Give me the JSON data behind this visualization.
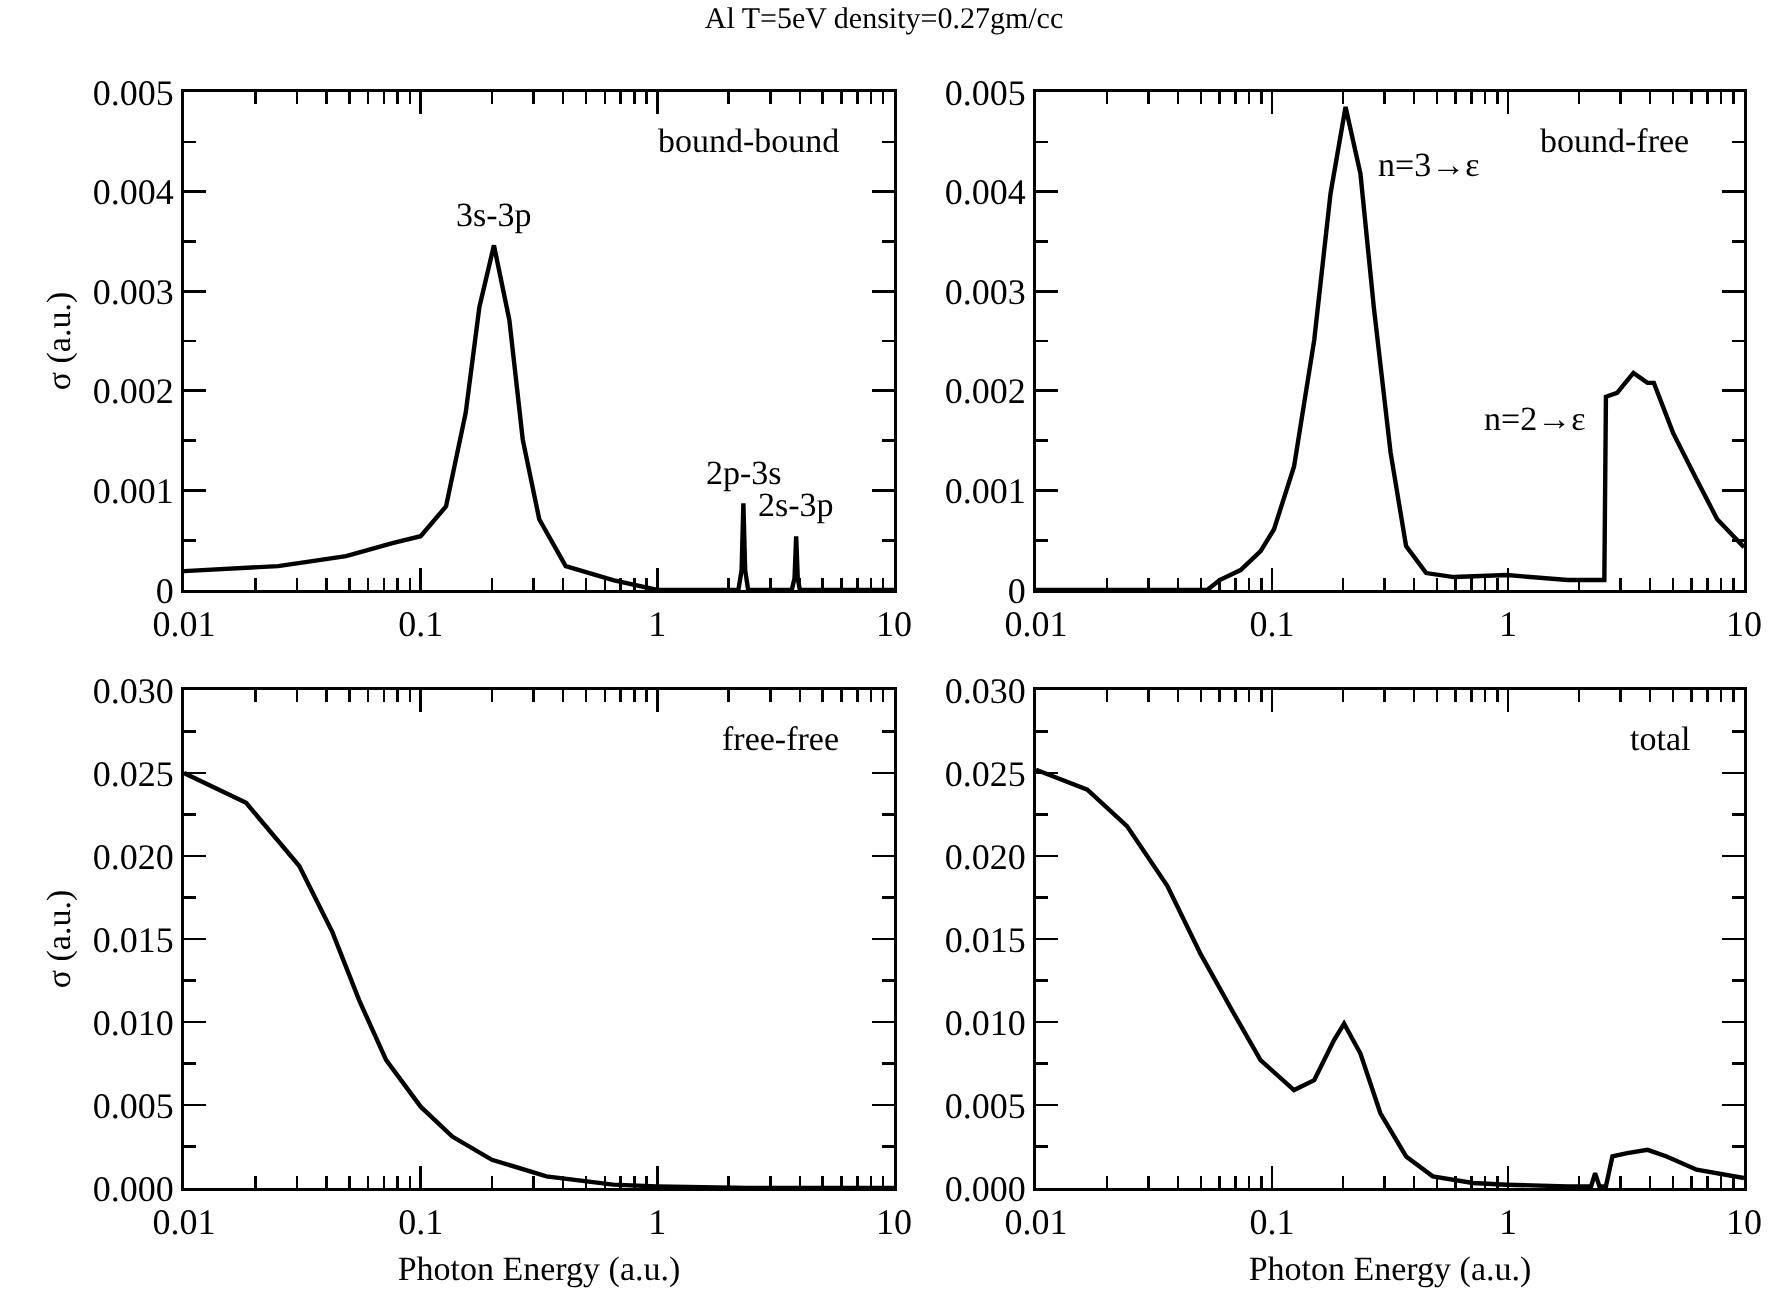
{
  "chart_data": [
    {
      "type": "line",
      "title": "Al  T=5eV density=0.27gm/cc",
      "ylabel": "σ (a.u.)",
      "log": "x",
      "color": "#000000",
      "x": [
        0.01,
        0.025,
        0.0484,
        0.076,
        0.1,
        0.128,
        0.155,
        0.177,
        0.204,
        0.237,
        0.27,
        0.317,
        0.41,
        0.65,
        1,
        2.1,
        2.2,
        2.27,
        2.31,
        2.35,
        2.42,
        3.7,
        3.8,
        3.86,
        3.92,
        4.0,
        10
      ],
      "values": [
        0.00019,
        0.00024,
        0.00034,
        0.00047,
        0.00054,
        0.00084,
        0.00178,
        0.00284,
        0.00346,
        0.00271,
        0.00151,
        0.00071,
        0.00024,
        0.0001,
        0,
        0,
        0,
        0.0002,
        0.00087,
        0.0002,
        0,
        0,
        0.00012,
        0.00054,
        0.00012,
        0,
        0
      ],
      "xlim": [
        0.01,
        10
      ],
      "xticks": [
        0.01,
        0.1,
        1,
        10
      ],
      "ylim": [
        0,
        0.005
      ],
      "yticks": [
        0,
        0.001,
        0.002,
        0.003,
        0.004,
        0.005
      ],
      "annotations": [
        "bound-bound",
        {
          "text": "3s-3p",
          "x": 0.204,
          "y": 0.00346
        },
        {
          "text": "2p-3s",
          "x": 2.31,
          "y": 0.00087
        },
        {
          "text": "2s-3p",
          "x": 3.86,
          "y": 0.00054
        }
      ]
    },
    {
      "type": "line",
      "log": "x",
      "color": "#000000",
      "x": [
        0.01,
        0.0532,
        0.06,
        0.0736,
        0.0895,
        0.102,
        0.124,
        0.151,
        0.177,
        0.205,
        0.237,
        0.27,
        0.318,
        0.37,
        0.45,
        0.59,
        0.99,
        1.79,
        2.56,
        2.6,
        2.9,
        3.4,
        3.9,
        4.15,
        5.0,
        6.3,
        7.7,
        10
      ],
      "values": [
        0,
        0,
        0.0001,
        0.0002,
        0.00039,
        0.00061,
        0.00124,
        0.00251,
        0.00398,
        0.00485,
        0.00418,
        0.00284,
        0.00138,
        0.00044,
        0.00017,
        0.00013,
        0.00015,
        0.0001,
        0.0001,
        0.00194,
        0.00198,
        0.00218,
        0.00208,
        0.00208,
        0.00158,
        0.00111,
        0.00071,
        0.00043
      ],
      "xlim": [
        0.01,
        10
      ],
      "xticks": [
        0.01,
        0.1,
        1,
        10
      ],
      "ylim": [
        0,
        0.005
      ],
      "yticks": [
        0,
        0.001,
        0.002,
        0.003,
        0.004,
        0.005
      ],
      "annotations": [
        "bound-free",
        {
          "text": "n=3→ε",
          "x": 0.205,
          "y": 0.00485
        },
        {
          "text": "n=2→ε",
          "x": 2.6,
          "y": 0.00194
        }
      ]
    },
    {
      "type": "line",
      "xlabel": "Photon Energy (a.u.)",
      "ylabel": "σ (a.u.)",
      "log": "x",
      "color": "#000000",
      "x": [
        0.01,
        0.0183,
        0.0307,
        0.0424,
        0.055,
        0.0715,
        0.1,
        0.136,
        0.2,
        0.34,
        0.65,
        1,
        2.4,
        4,
        10
      ],
      "values": [
        0.025,
        0.0232,
        0.0194,
        0.0154,
        0.0113,
        0.0077,
        0.0049,
        0.0031,
        0.0017,
        0.0007,
        0.0002,
        0.0001,
        0,
        0,
        0
      ],
      "xlim": [
        0.01,
        10
      ],
      "xticks": [
        0.01,
        0.1,
        1,
        10
      ],
      "ylim": [
        0,
        0.03
      ],
      "yticks": [
        {
          "value": 0,
          "label": "0.000"
        },
        {
          "value": 0.005,
          "label": "0.005"
        },
        {
          "value": 0.01,
          "label": "0.010"
        },
        {
          "value": 0.015,
          "label": "0.015"
        },
        {
          "value": 0.02,
          "label": "0.020"
        },
        {
          "value": 0.025,
          "label": "0.025"
        },
        {
          "value": 0.03,
          "label": "0.030"
        }
      ],
      "annotations": [
        "free-free"
      ]
    },
    {
      "type": "line",
      "xlabel": "Photon Energy (a.u.)",
      "log": "x",
      "color": "#000000",
      "x": [
        0.01,
        0.0165,
        0.0243,
        0.036,
        0.0498,
        0.069,
        0.0894,
        0.124,
        0.151,
        0.183,
        0.202,
        0.237,
        0.288,
        0.37,
        0.48,
        0.71,
        0.99,
        1.79,
        2.25,
        2.34,
        2.44,
        2.6,
        2.77,
        3.2,
        3.9,
        4.7,
        6.3,
        10
      ],
      "values": [
        0.0252,
        0.024,
        0.0218,
        0.0182,
        0.0141,
        0.0105,
        0.0077,
        0.0059,
        0.0065,
        0.0089,
        0.0099,
        0.0081,
        0.0045,
        0.0019,
        0.0007,
        0.0003,
        0.0002,
        0.0001,
        0.0001,
        0.0009,
        0.0001,
        0.0001,
        0.0019,
        0.0021,
        0.0023,
        0.0019,
        0.0011,
        0.0006
      ],
      "xlim": [
        0.01,
        10
      ],
      "xticks": [
        0.01,
        0.1,
        1,
        10
      ],
      "ylim": [
        0,
        0.03
      ],
      "yticks": [
        {
          "value": 0,
          "label": "0.000"
        },
        {
          "value": 0.005,
          "label": "0.005"
        },
        {
          "value": 0.01,
          "label": "0.010"
        },
        {
          "value": 0.015,
          "label": "0.015"
        },
        {
          "value": 0.02,
          "label": "0.020"
        },
        {
          "value": 0.025,
          "label": "0.025"
        },
        {
          "value": 0.03,
          "label": "0.030"
        }
      ],
      "annotations": [
        "total"
      ]
    }
  ]
}
